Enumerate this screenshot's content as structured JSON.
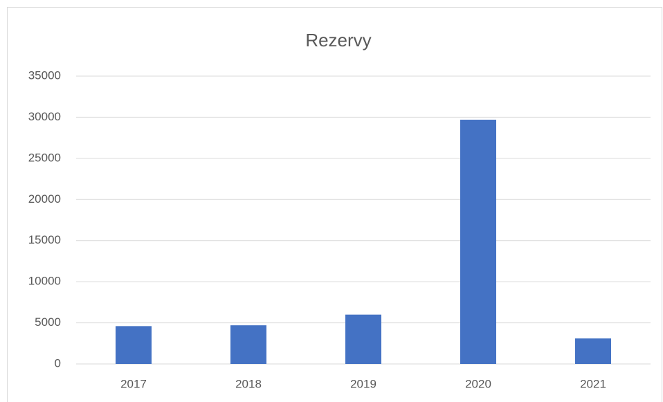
{
  "chart_data": {
    "type": "bar",
    "title": "Rezervy",
    "categories": [
      "2017",
      "2018",
      "2019",
      "2020",
      "2021"
    ],
    "values": [
      4600,
      4700,
      6000,
      29700,
      3100
    ],
    "color": "#4472c4",
    "ylim": [
      0,
      35000
    ],
    "yticks": [
      0,
      5000,
      10000,
      15000,
      20000,
      25000,
      30000,
      35000
    ],
    "grid": true
  }
}
